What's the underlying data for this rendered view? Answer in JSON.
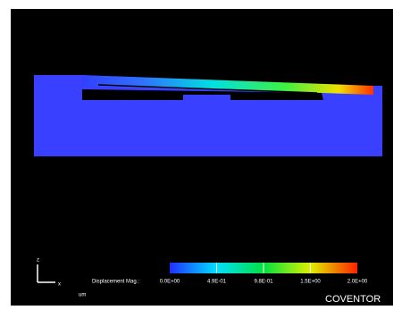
{
  "legend": {
    "label": "Displacement Mag.:",
    "unit": "um",
    "ticks": [
      "0.0E+00",
      "4.9E-01",
      "9.8E-01",
      "1.5E+00",
      "2.0E+00"
    ]
  },
  "axes": {
    "vertical": "z",
    "horizontal": "x"
  },
  "brand": "COVENTOR"
}
